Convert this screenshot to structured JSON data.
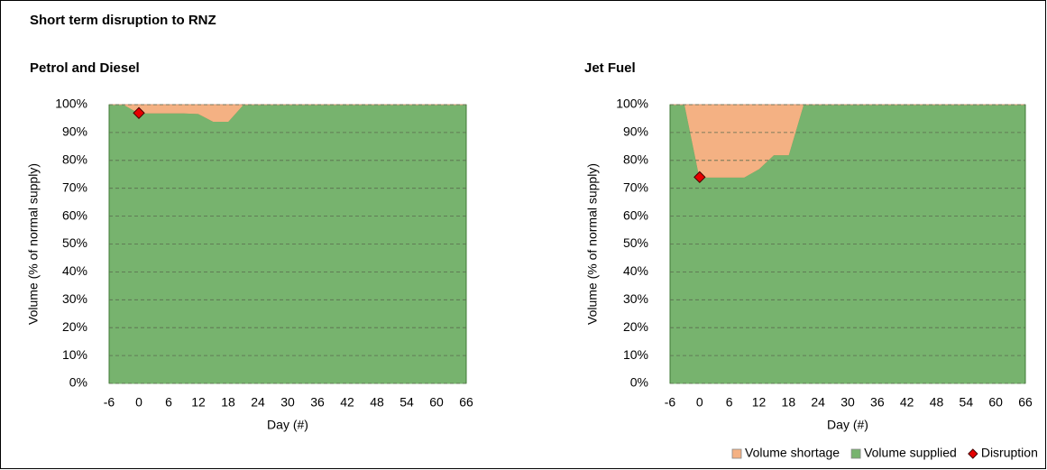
{
  "title": "Short term disruption to RNZ",
  "chart_data": [
    {
      "type": "area",
      "title": "Petrol and Diesel",
      "x_label": "Day (#)",
      "y_label": "Volume (% of normal supply)",
      "x": [
        -6,
        -3,
        0,
        3,
        6,
        9,
        12,
        15,
        18,
        21,
        24,
        66
      ],
      "series": [
        {
          "color": "#f4b183",
          "values": [
            0,
            0,
            3,
            3,
            3,
            3,
            3.2,
            6,
            6,
            0,
            0,
            0
          ]
        },
        {
          "color": "#77b36e",
          "values": [
            100,
            100,
            97,
            97,
            97,
            97,
            96.8,
            94,
            94,
            100,
            100,
            100
          ]
        },
        {
          "color": "#e60000",
          "type": "scatter",
          "x": [
            0
          ],
          "values": [
            97
          ]
        }
      ],
      "xlim": [
        -6,
        66
      ],
      "xticks": [
        -6,
        0,
        6,
        12,
        18,
        24,
        30,
        36,
        42,
        48,
        54,
        60,
        66
      ],
      "ylim": [
        0,
        100
      ],
      "yticks": [
        {
          "value": 0,
          "label": "0%"
        },
        {
          "value": 10,
          "label": "10%"
        },
        {
          "value": 20,
          "label": "20%"
        },
        {
          "value": 30,
          "label": "30%"
        },
        {
          "value": 40,
          "label": "40%"
        },
        {
          "value": 50,
          "label": "50%"
        },
        {
          "value": 60,
          "label": "60%"
        },
        {
          "value": 70,
          "label": "70%"
        },
        {
          "value": 80,
          "label": "80%"
        },
        {
          "value": 90,
          "label": "90%"
        },
        {
          "value": 100,
          "label": "100%"
        }
      ],
      "grid": true
    },
    {
      "type": "area",
      "title": "Jet Fuel",
      "x_label": "Day (#)",
      "y_label": "Volume (% of normal supply)",
      "x": [
        -6,
        -3,
        0,
        3,
        6,
        9,
        12,
        15,
        18,
        21,
        24,
        66
      ],
      "series": [
        {
          "name": "Volume shortage",
          "color": "#f4b183",
          "values": [
            0,
            0,
            26,
            26,
            26,
            26,
            23,
            18,
            18,
            0,
            0,
            0
          ]
        },
        {
          "name": "Volume supplied",
          "color": "#77b36e",
          "values": [
            100,
            100,
            74,
            74,
            74,
            74,
            77,
            82,
            82,
            100,
            100,
            100
          ]
        },
        {
          "name": "Disruption",
          "color": "#e60000",
          "type": "scatter",
          "x": [
            0
          ],
          "values": [
            74
          ]
        }
      ],
      "xlim": [
        -6,
        66
      ],
      "xticks": [
        -6,
        0,
        6,
        12,
        18,
        24,
        30,
        36,
        42,
        48,
        54,
        60,
        66
      ],
      "ylim": [
        0,
        100
      ],
      "yticks": [
        {
          "value": 0,
          "label": "0%"
        },
        {
          "value": 10,
          "label": "10%"
        },
        {
          "value": 20,
          "label": "20%"
        },
        {
          "value": 30,
          "label": "30%"
        },
        {
          "value": 40,
          "label": "40%"
        },
        {
          "value": 50,
          "label": "50%"
        },
        {
          "value": 60,
          "label": "60%"
        },
        {
          "value": 70,
          "label": "70%"
        },
        {
          "value": 80,
          "label": "80%"
        },
        {
          "value": 90,
          "label": "90%"
        },
        {
          "value": 100,
          "label": "100%"
        }
      ],
      "grid": true,
      "legend": "bottom-right"
    }
  ]
}
